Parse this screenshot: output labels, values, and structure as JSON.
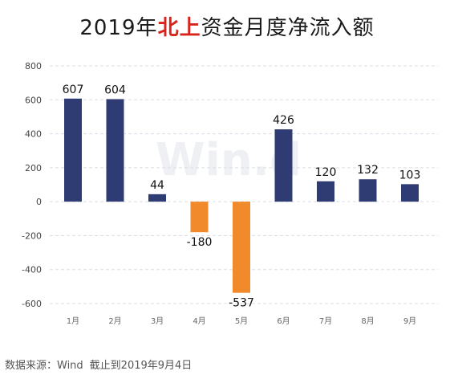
{
  "title": {
    "before": "2019年",
    "highlight": "北上",
    "after": "资金月度净流入额"
  },
  "source": {
    "label": "数据来源：Wind",
    "cutoff": "截止到2019年9月4日"
  },
  "watermark": "Win.d",
  "colors": {
    "positive": "#2f3c73",
    "negative": "#f08a2a",
    "grid": "#dadde6",
    "title_highlight": "#d9241e"
  },
  "chart_data": {
    "type": "bar",
    "categories": [
      "1月",
      "2月",
      "3月",
      "4月",
      "5月",
      "6月",
      "7月",
      "8月",
      "9月"
    ],
    "values": [
      607,
      604,
      44,
      -180,
      -537,
      426,
      120,
      132,
      103
    ],
    "data_labels": [
      "607",
      "604",
      "44",
      "-180",
      "-537",
      "426",
      "120",
      "132",
      "103"
    ],
    "yticks": [
      800,
      600,
      400,
      200,
      0,
      -200,
      -400,
      -600
    ],
    "ylim": [
      -600,
      800
    ],
    "grid": true,
    "legend": "none"
  }
}
